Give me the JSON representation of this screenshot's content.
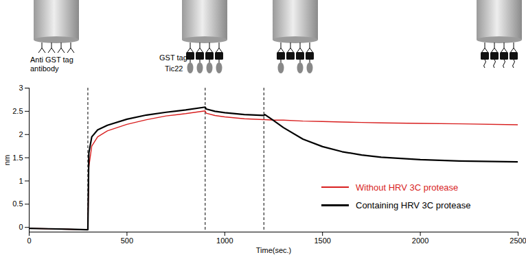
{
  "chart_data": {
    "type": "line",
    "x_label": "Time(sec.)",
    "y_label": "nm",
    "x": [
      0,
      100,
      200,
      295,
      300,
      305,
      320,
      350,
      400,
      500,
      600,
      700,
      800,
      900,
      905,
      950,
      1000,
      1100,
      1200,
      1205,
      1250,
      1300,
      1400,
      1500,
      1600,
      1700,
      1800,
      2000,
      2200,
      2500
    ],
    "series": [
      {
        "name": "Without HRV 3C protease",
        "color": "#d81e1e",
        "values": [
          -0.02,
          -0.03,
          -0.04,
          -0.05,
          -0.05,
          1.3,
          1.75,
          1.95,
          2.08,
          2.22,
          2.32,
          2.4,
          2.45,
          2.51,
          2.46,
          2.41,
          2.38,
          2.34,
          2.32,
          2.32,
          2.31,
          2.31,
          2.29,
          2.28,
          2.27,
          2.26,
          2.25,
          2.24,
          2.23,
          2.21
        ]
      },
      {
        "name": "Containing HRV 3C protease",
        "color": "#000000",
        "values": [
          -0.02,
          -0.03,
          -0.04,
          -0.05,
          -0.05,
          1.6,
          1.95,
          2.1,
          2.2,
          2.33,
          2.42,
          2.48,
          2.53,
          2.59,
          2.55,
          2.5,
          2.47,
          2.43,
          2.41,
          2.43,
          2.3,
          2.15,
          1.9,
          1.74,
          1.63,
          1.56,
          1.51,
          1.46,
          1.43,
          1.41
        ]
      }
    ],
    "vlines": [
      300,
      900,
      1200
    ],
    "xlim": [
      0,
      2500
    ],
    "xticks": [
      0,
      500,
      1000,
      1500,
      2000,
      2500
    ],
    "ylim": [
      -0.1,
      3
    ],
    "yticks": [
      0,
      0.5,
      1,
      1.5,
      2,
      2.5,
      3
    ],
    "legend": "lower right",
    "grid": false
  },
  "diagram": {
    "antibody_label": "Anti GST tag antibody",
    "gst_label": "GST tag",
    "tic22_label": "Tic22"
  }
}
